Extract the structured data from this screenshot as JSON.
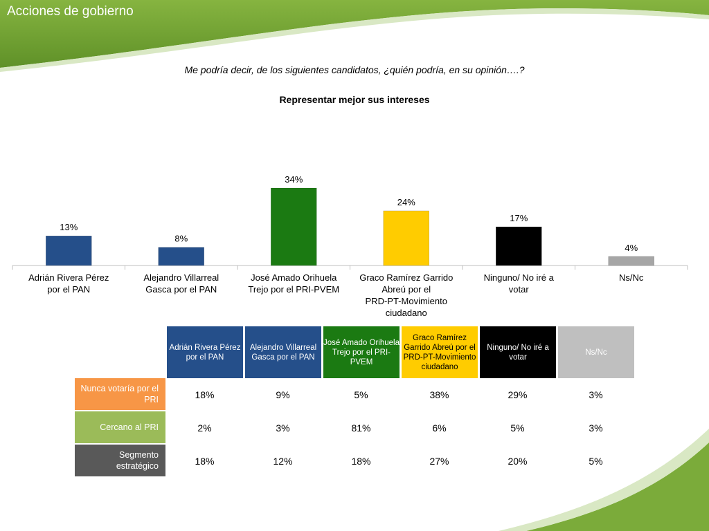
{
  "slide": {
    "title": "Acciones de gobierno",
    "question": "Me podría decir, de los siguientes candidatos, ¿quién podría, en su opinión….?",
    "chart_title": "Representar mejor sus intereses"
  },
  "colors": {
    "header_green": "#7bab3a",
    "pan_blue": "#254f8a",
    "pri_green": "#1b7a12",
    "prd_yellow": "#ffcc00",
    "none_black": "#000000",
    "nsnc_gray": "#a6a6a6",
    "row_orange": "#f79646",
    "row_lightgreen": "#9bbb59",
    "row_darkgray": "#595959"
  },
  "chart_data": {
    "type": "bar",
    "title": "Representar mejor sus intereses",
    "categories": [
      "Adrián Rivera Pérez por el PAN",
      "Alejandro Villarreal Gasca por el PAN",
      "José Amado Orihuela Trejo por el PRI-PVEM",
      "Graco Ramírez Garrido Abreú por el PRD-PT-Movimiento ciudadano",
      "Ninguno/ No iré a votar",
      "Ns/Nc"
    ],
    "values": [
      13,
      8,
      34,
      24,
      17,
      4
    ],
    "data_labels": [
      "13%",
      "8%",
      "34%",
      "24%",
      "17%",
      "4%"
    ],
    "bar_colors": [
      "#254f8a",
      "#254f8a",
      "#1b7a12",
      "#ffcc00",
      "#000000",
      "#a6a6a6"
    ],
    "unit": "%",
    "grid": false,
    "legend": "none",
    "ylim": [
      0,
      40
    ]
  },
  "table": {
    "headers": [
      {
        "label": "Adrián Rivera Pérez por el PAN",
        "bg": "#254f8a",
        "fg": "#ffffff"
      },
      {
        "label": "Alejandro Villarreal Gasca por el PAN",
        "bg": "#254f8a",
        "fg": "#ffffff"
      },
      {
        "label": "José Amado Orihuela Trejo por el PRI-PVEM",
        "bg": "#1b7a12",
        "fg": "#ffffff"
      },
      {
        "label": "Graco Ramírez Garrido Abreú por el PRD-PT-Movimiento ciudadano",
        "bg": "#ffcc00",
        "fg": "#000000"
      },
      {
        "label": "Ninguno/ No iré a votar",
        "bg": "#000000",
        "fg": "#ffffff"
      },
      {
        "label": "Ns/Nc",
        "bg": "#bfbfbf",
        "fg": "#ffffff"
      }
    ],
    "rows": [
      {
        "label": "Nunca votaría por el PRI",
        "bg": "#f79646",
        "values": [
          "18%",
          "9%",
          "5%",
          "38%",
          "29%",
          "3%"
        ]
      },
      {
        "label": "Cercano al PRI",
        "bg": "#9bbb59",
        "values": [
          "2%",
          "3%",
          "81%",
          "6%",
          "5%",
          "3%"
        ]
      },
      {
        "label": "Segmento estratégico",
        "bg": "#595959",
        "values": [
          "18%",
          "12%",
          "18%",
          "27%",
          "20%",
          "5%"
        ]
      }
    ]
  }
}
